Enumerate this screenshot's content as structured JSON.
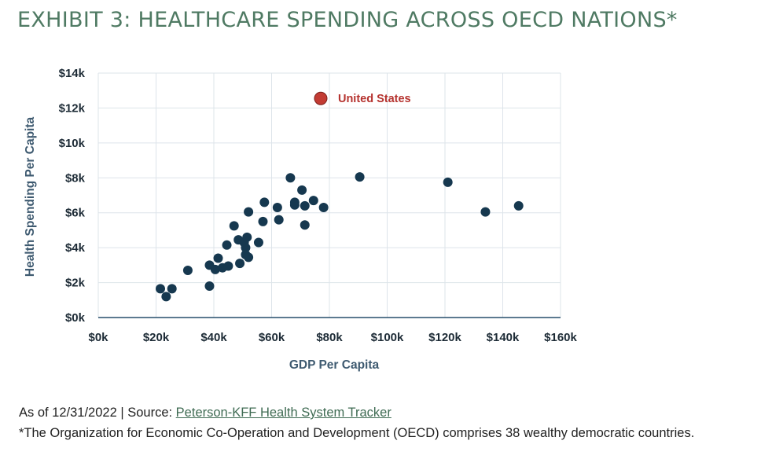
{
  "title": "EXHIBIT 3: HEALTHCARE SPENDING ACROSS OECD NATIONS*",
  "colors": {
    "title": "#4f7a63",
    "dot": "#16384f",
    "highlight_dot": "#c23b33",
    "highlight_label": "#b5322e",
    "grid": "#dde4ea",
    "axis": "#264f6b",
    "tick_text": "#1d2b36",
    "axis_label": "#3e5a70"
  },
  "chart_data": {
    "type": "scatter",
    "xlabel": "GDP Per Capita",
    "ylabel": "Health Spending Per Capita",
    "xlim": [
      0,
      160000
    ],
    "ylim": [
      0,
      14000
    ],
    "grid": true,
    "xticks": [
      {
        "value": 0,
        "label": "$0k"
      },
      {
        "value": 20000,
        "label": "$20k"
      },
      {
        "value": 40000,
        "label": "$40k"
      },
      {
        "value": 60000,
        "label": "$60k"
      },
      {
        "value": 80000,
        "label": "$80k"
      },
      {
        "value": 100000,
        "label": "$100k"
      },
      {
        "value": 120000,
        "label": "$120k"
      },
      {
        "value": 140000,
        "label": "$140k"
      },
      {
        "value": 160000,
        "label": "$160k"
      }
    ],
    "yticks": [
      {
        "value": 0,
        "label": "$0k"
      },
      {
        "value": 2000,
        "label": "$2k"
      },
      {
        "value": 4000,
        "label": "$4k"
      },
      {
        "value": 6000,
        "label": "$6k"
      },
      {
        "value": 8000,
        "label": "$8k"
      },
      {
        "value": 10000,
        "label": "$10k"
      },
      {
        "value": 12000,
        "label": "$12k"
      },
      {
        "value": 14000,
        "label": "$14k"
      }
    ],
    "points": [
      {
        "x": 21500,
        "y": 1650
      },
      {
        "x": 23500,
        "y": 1200
      },
      {
        "x": 25500,
        "y": 1650
      },
      {
        "x": 31000,
        "y": 2700
      },
      {
        "x": 38500,
        "y": 1800
      },
      {
        "x": 38500,
        "y": 3000
      },
      {
        "x": 40500,
        "y": 2750
      },
      {
        "x": 41500,
        "y": 3400
      },
      {
        "x": 43000,
        "y": 2850
      },
      {
        "x": 44500,
        "y": 4150
      },
      {
        "x": 45000,
        "y": 2950
      },
      {
        "x": 47000,
        "y": 5250
      },
      {
        "x": 48500,
        "y": 4450
      },
      {
        "x": 49000,
        "y": 3100
      },
      {
        "x": 50500,
        "y": 4300
      },
      {
        "x": 51000,
        "y": 4000
      },
      {
        "x": 51000,
        "y": 3600
      },
      {
        "x": 51500,
        "y": 4600
      },
      {
        "x": 52000,
        "y": 6050
      },
      {
        "x": 52000,
        "y": 3450
      },
      {
        "x": 55500,
        "y": 4300
      },
      {
        "x": 57000,
        "y": 5500
      },
      {
        "x": 57500,
        "y": 6600
      },
      {
        "x": 62000,
        "y": 6300
      },
      {
        "x": 62500,
        "y": 5600
      },
      {
        "x": 66500,
        "y": 8000
      },
      {
        "x": 68000,
        "y": 6450
      },
      {
        "x": 68000,
        "y": 6600
      },
      {
        "x": 70500,
        "y": 7300
      },
      {
        "x": 71500,
        "y": 6400
      },
      {
        "x": 71500,
        "y": 5300
      },
      {
        "x": 74500,
        "y": 6700
      },
      {
        "x": 78000,
        "y": 6300
      },
      {
        "x": 90500,
        "y": 8050
      },
      {
        "x": 121000,
        "y": 7750
      },
      {
        "x": 134000,
        "y": 6050
      },
      {
        "x": 145500,
        "y": 6400
      }
    ],
    "highlight": {
      "label": "United States",
      "x": 77000,
      "y": 12550
    }
  },
  "footer": {
    "asof_prefix": "As of 12/31/2022 | Source: ",
    "source_link": "Peterson-KFF Health System Tracker",
    "note": "*The Organization for Economic Co-Operation and Development (OECD) comprises 38 wealthy democratic countries."
  }
}
